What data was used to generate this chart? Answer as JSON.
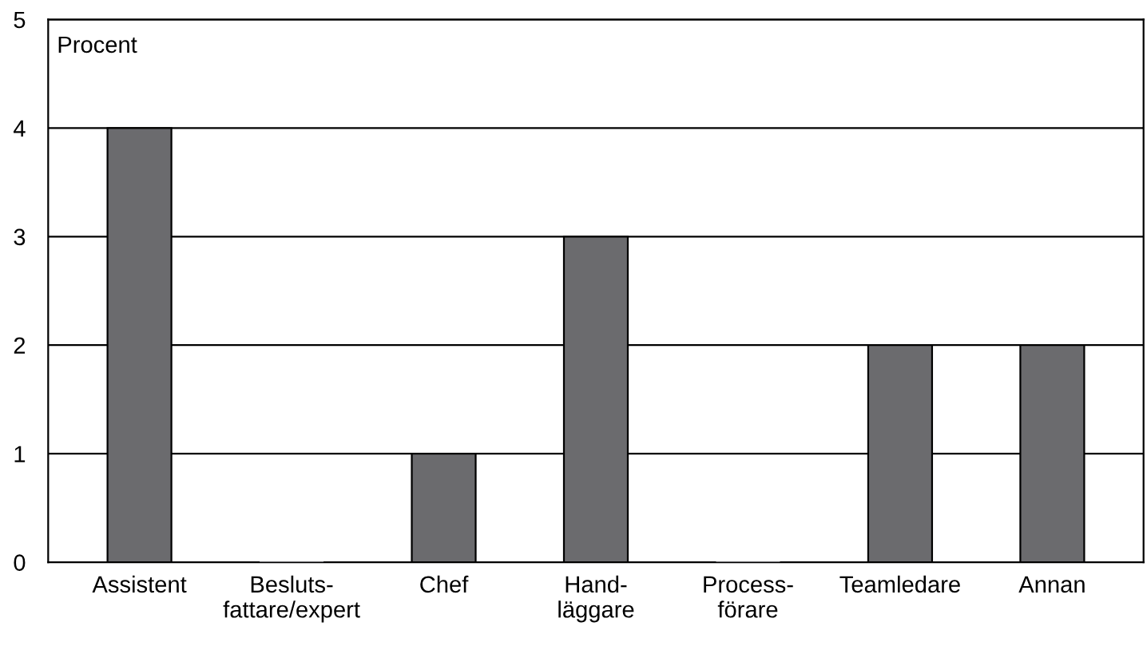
{
  "chart_data": {
    "type": "bar",
    "ylabel": "Procent",
    "categories": [
      "Assistent",
      "Besluts-\nfattare/expert",
      "Chef",
      "Hand-\nläggare",
      "Process-\nförare",
      "Teamledare",
      "Annan"
    ],
    "values": [
      4,
      0,
      1,
      3,
      0,
      2,
      2
    ],
    "color": "#6b6b6e",
    "ylim": [
      0,
      5
    ],
    "yticks": [
      0,
      1,
      2,
      3,
      4,
      5
    ],
    "grid": "y",
    "legend": false
  }
}
